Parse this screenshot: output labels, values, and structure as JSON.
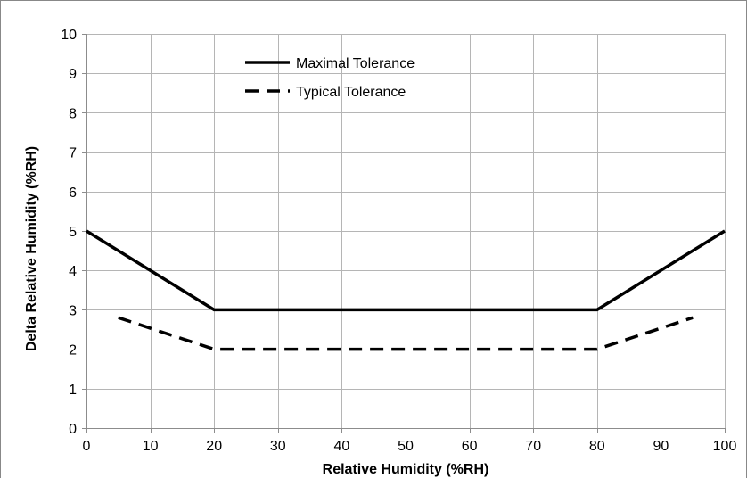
{
  "chart_data": {
    "type": "line",
    "title": "",
    "xlabel": "Relative Humidity (%RH)",
    "ylabel": "Delta Relative Humidity (%RH)",
    "xlim": [
      0,
      100
    ],
    "ylim": [
      0,
      10
    ],
    "xticks": [
      "0",
      "10",
      "20",
      "30",
      "40",
      "50",
      "60",
      "70",
      "80",
      "90",
      "100"
    ],
    "yticks": [
      "0",
      "1",
      "2",
      "3",
      "4",
      "5",
      "6",
      "7",
      "8",
      "9",
      "10"
    ],
    "grid": true,
    "legend_position": "top-center",
    "series": [
      {
        "name": "Maximal Tolerance",
        "style": "solid",
        "color": "#000000",
        "x": [
          0,
          20,
          80,
          100
        ],
        "y": [
          5,
          3,
          3,
          5
        ]
      },
      {
        "name": "Typical Tolerance",
        "style": "dashed",
        "color": "#000000",
        "x": [
          5,
          20,
          80,
          95
        ],
        "y": [
          2.8,
          2,
          2,
          2.8
        ]
      }
    ]
  }
}
